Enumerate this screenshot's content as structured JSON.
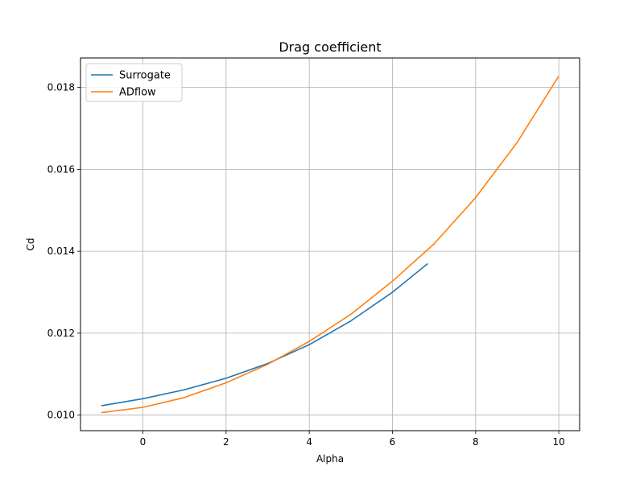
{
  "chart_data": {
    "type": "line",
    "title": "Drag coefficient",
    "xlabel": "Alpha",
    "ylabel": "Cd",
    "xlim": [
      -1.5,
      10.5
    ],
    "ylim": [
      0.00962,
      0.01872
    ],
    "xticks": [
      0,
      2,
      4,
      6,
      8,
      10
    ],
    "xtick_labels": [
      "0",
      "2",
      "4",
      "6",
      "8",
      "10"
    ],
    "yticks": [
      0.01,
      0.012,
      0.014,
      0.016,
      0.018
    ],
    "ytick_labels": [
      "0.010",
      "0.012",
      "0.014",
      "0.016",
      "0.018"
    ],
    "grid": true,
    "legend_position": "top-left",
    "series": [
      {
        "name": "Surrogate",
        "color": "#1f77b4",
        "x": [
          -1.0,
          0.0,
          1.0,
          2.0,
          3.0,
          4.0,
          5.0,
          6.0,
          6.85
        ],
        "y": [
          0.01023,
          0.0104,
          0.01062,
          0.0109,
          0.01126,
          0.01172,
          0.0123,
          0.013,
          0.0137
        ]
      },
      {
        "name": "ADflow",
        "color": "#ff7f0e",
        "x": [
          -1,
          0,
          1,
          2,
          3,
          4,
          5,
          6,
          7,
          8,
          9,
          10
        ],
        "y": [
          0.01006,
          0.01019,
          0.01043,
          0.01079,
          0.01124,
          0.0118,
          0.01246,
          0.01327,
          0.01418,
          0.01531,
          0.01666,
          0.01828
        ]
      }
    ]
  }
}
